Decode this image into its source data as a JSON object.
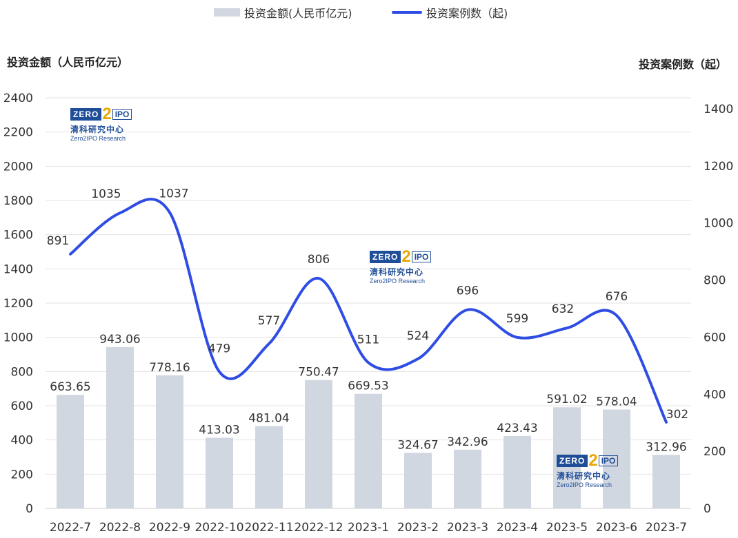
{
  "legend": {
    "bar_label": "投资金额(人民币亿元)",
    "line_label": "投资案例数（起)"
  },
  "axes": {
    "left_title": "投资金额（人民币亿元）",
    "right_title": "投资案例数（起）"
  },
  "logo": {
    "mark_left": "ZERO",
    "mark_digit": "2",
    "mark_right": "IPO",
    "name_cn": "清科研究中心",
    "name_en": "Zero2IPO Research"
  },
  "colors": {
    "bar": "#d1d7e0",
    "line": "#2f4de4",
    "grid": "#e3e3e3",
    "text": "#333333"
  },
  "chart_data": {
    "type": "bar+line",
    "categories": [
      "2022-7",
      "2022-8",
      "2022-9",
      "2022-10",
      "2022-11",
      "2022-12",
      "2023-1",
      "2023-2",
      "2023-3",
      "2023-4",
      "2023-5",
      "2023-6",
      "2023-7"
    ],
    "series": [
      {
        "name": "投资金额(人民币亿元)",
        "type": "bar",
        "axis": "left",
        "values": [
          663.65,
          943.06,
          778.16,
          413.03,
          481.04,
          750.47,
          669.53,
          324.67,
          342.96,
          423.43,
          591.02,
          578.04,
          312.96
        ],
        "labels": [
          "663.65",
          "943.06",
          "778.16",
          "413.03",
          "481.04",
          "750.47",
          "669.53",
          "324.67",
          "342.96",
          "423.43",
          "591.02",
          "578.04",
          "312.96"
        ]
      },
      {
        "name": "投资案例数（起)",
        "type": "line",
        "axis": "right",
        "smooth": true,
        "values": [
          891,
          1035,
          1037,
          479,
          577,
          806,
          511,
          524,
          696,
          599,
          632,
          676,
          302
        ],
        "labels": [
          "891",
          "1035",
          "1037",
          "479",
          "577",
          "806",
          "511",
          "524",
          "696",
          "599",
          "632",
          "676",
          "302"
        ]
      }
    ],
    "y_left": {
      "min": 0,
      "max": 2400,
      "ticks": [
        0,
        200,
        400,
        600,
        800,
        1000,
        1200,
        1400,
        1600,
        1800,
        2000,
        2200,
        2400
      ]
    },
    "y_right": {
      "min": 0,
      "max": 1450,
      "ticks": [
        0,
        200,
        400,
        600,
        800,
        1000,
        1200,
        1400
      ]
    },
    "grid": true,
    "legend_position": "top-center"
  }
}
